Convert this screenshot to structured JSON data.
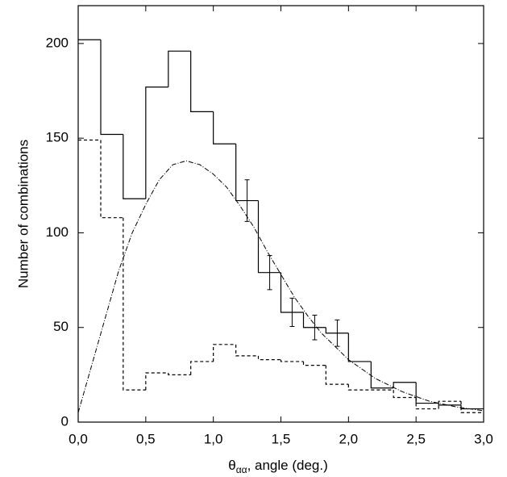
{
  "chart_data": {
    "type": "histogram",
    "x_label": {
      "symbol": "θ",
      "subscript": "αα",
      "text": ", angle (deg.)"
    },
    "y_label": "Number of combinations",
    "xlim": [
      0,
      3
    ],
    "ylim": [
      0,
      220
    ],
    "xticks": [
      {
        "value": 0,
        "label": "0,0"
      },
      {
        "value": 0.5,
        "label": "0,5"
      },
      {
        "value": 1,
        "label": "1,0"
      },
      {
        "value": 1.5,
        "label": "1,5"
      },
      {
        "value": 2,
        "label": "2,0"
      },
      {
        "value": 2.5,
        "label": "2,5"
      },
      {
        "value": 3,
        "label": "3,0"
      }
    ],
    "yticks": [
      0,
      50,
      100,
      150,
      200
    ],
    "bins": [
      0,
      0.167,
      0.333,
      0.5,
      0.667,
      0.833,
      1,
      1.167,
      1.333,
      1.5,
      1.667,
      1.833,
      2,
      2.167,
      2.333,
      2.5,
      2.667,
      2.833,
      3
    ],
    "series": [
      {
        "color": "#000000",
        "style": "solid",
        "values": [
          202,
          152,
          118,
          177,
          196,
          164,
          147,
          117,
          79,
          58,
          50,
          47,
          32,
          18,
          21,
          10,
          9,
          7
        ]
      },
      {
        "color": "#000000",
        "style": "dashed",
        "values": [
          149,
          108,
          17,
          26,
          25,
          32,
          41,
          35,
          33,
          32,
          30,
          20,
          17,
          17,
          13,
          7,
          11,
          5
        ]
      }
    ],
    "error_bars": {
      "color": "#000000",
      "x": [
        1.25,
        1.417,
        1.583,
        1.75,
        1.917
      ],
      "values": [
        117,
        79,
        58,
        50,
        47
      ],
      "errors": [
        11,
        9,
        7.5,
        6.5,
        7
      ]
    },
    "curve": {
      "color": "#000000",
      "style": "dashdot",
      "x": [
        0,
        0.1,
        0.2,
        0.3,
        0.4,
        0.5,
        0.6,
        0.7,
        0.8,
        0.9,
        1.0,
        1.1,
        1.2,
        1.3,
        1.4,
        1.5,
        1.6,
        1.7,
        1.8,
        1.9,
        2.0,
        2.2,
        2.4,
        2.6,
        2.8,
        3.0
      ],
      "values": [
        5,
        30,
        55,
        80,
        100,
        115,
        128,
        136,
        138,
        136,
        131,
        124,
        114,
        103,
        90,
        78,
        66,
        56,
        47,
        40,
        33,
        23,
        16,
        11,
        8,
        6
      ]
    }
  }
}
